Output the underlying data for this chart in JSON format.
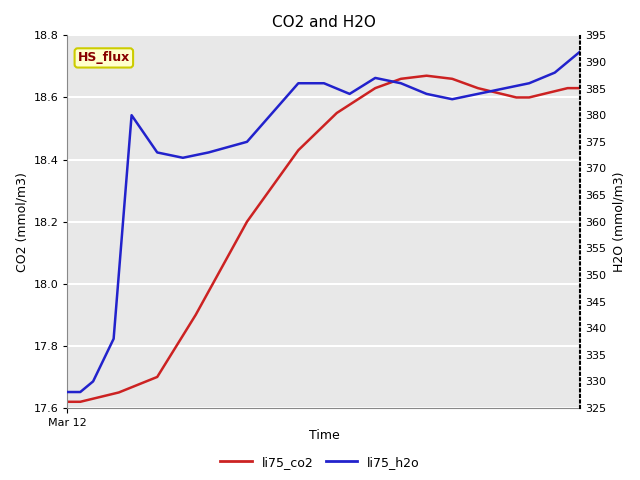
{
  "title": "CO2 and H2O",
  "xlabel": "Time",
  "ylabel_left": "CO2 (mmol/m3)",
  "ylabel_right": "H2O (mmol/m3)",
  "ylim_left": [
    17.6,
    18.8
  ],
  "ylim_right": [
    325,
    395
  ],
  "yticks_left": [
    17.6,
    17.8,
    18.0,
    18.2,
    18.4,
    18.6,
    18.8
  ],
  "yticks_right": [
    325,
    330,
    335,
    340,
    345,
    350,
    355,
    360,
    365,
    370,
    375,
    380,
    385,
    390,
    395
  ],
  "xtick_label": "Mar 12",
  "annotation_text": "HS_flux",
  "annotation_bg": "#ffffcc",
  "annotation_text_color": "#880000",
  "annotation_edge_color": "#cccc00",
  "legend_labels": [
    "li75_co2",
    "li75_h2o"
  ],
  "legend_colors": [
    "#cc2222",
    "#2222cc"
  ],
  "plot_bg_color": "#e8e8e8",
  "fig_bg_color": "#ffffff",
  "co2_color": "#cc2222",
  "h2o_color": "#2222cc",
  "co2_x": [
    0,
    0.5,
    1.0,
    2.0,
    3.5,
    5.0,
    7.0,
    9.0,
    10.5,
    12.0,
    13.0,
    14.0,
    15.0,
    16.0,
    17.0,
    17.5,
    18.0,
    18.5,
    19.0,
    19.5,
    20.0
  ],
  "co2_y": [
    17.62,
    17.62,
    17.63,
    17.65,
    17.7,
    17.9,
    18.2,
    18.43,
    18.55,
    18.63,
    18.66,
    18.67,
    18.66,
    18.63,
    18.61,
    18.6,
    18.6,
    18.61,
    18.62,
    18.63,
    18.63
  ],
  "h2o_x": [
    0,
    0.5,
    1.0,
    1.8,
    2.5,
    3.5,
    4.5,
    5.5,
    7.0,
    9.0,
    10.0,
    11.0,
    12.0,
    13.0,
    14.0,
    15.0,
    16.0,
    17.0,
    18.0,
    19.0,
    20.0
  ],
  "h2o_y": [
    328,
    328,
    330,
    338,
    380,
    373,
    372,
    373,
    375,
    386,
    386,
    384,
    387,
    386,
    384,
    383,
    384,
    385,
    386,
    388,
    392
  ],
  "grid_color": "#ffffff",
  "grid_linewidth": 1.5,
  "line_linewidth": 1.8,
  "right_spine_dotted": true
}
